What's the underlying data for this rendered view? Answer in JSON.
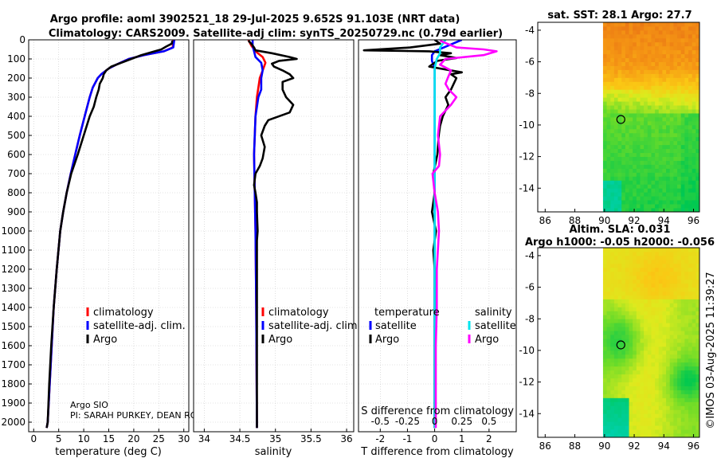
{
  "title_line1": "Argo profile: aoml 3902521_18 29-Jul-2025 9.652S 91.103E (NRT data)",
  "title_line2": "Climatology: CARS2009. Satellite-adj clim: synTS_20250729.nc (0.79d earlier)",
  "timestamp": "©IMOS 03-Aug-2025 11:39:27",
  "credit": {
    "line1": "Argo SIO",
    "line2": "PI: SARAH PURKEY, DEAN RO"
  },
  "colors": {
    "climatology": "#ff0000",
    "satellite_adj": "#0000ff",
    "argo": "#000000",
    "salinity_satellite": "#00e5ee",
    "salinity_argo": "#ff00ff"
  },
  "chart_data": [
    {
      "type": "line",
      "xlabel": "temperature (deg C)",
      "ylim": [
        2050,
        0
      ],
      "xlim": [
        -1,
        31
      ],
      "xticks": [
        "0",
        "5",
        "10",
        "15",
        "20",
        "25",
        "30"
      ],
      "xtick_values": [
        0,
        5,
        10,
        15,
        20,
        25,
        30
      ],
      "yticks": [
        "0",
        "100",
        "200",
        "300",
        "400",
        "500",
        "600",
        "700",
        "800",
        "900",
        "1000",
        "1100",
        "1200",
        "1300",
        "1400",
        "1500",
        "1600",
        "1700",
        "1800",
        "1900",
        "2000"
      ],
      "ytick_values": [
        0,
        100,
        200,
        300,
        400,
        500,
        600,
        700,
        800,
        900,
        1000,
        1100,
        1200,
        1300,
        1400,
        1500,
        1600,
        1700,
        1800,
        1900,
        2000
      ],
      "grid": true,
      "legend": {
        "placement": "center",
        "entries": [
          "climatology",
          "satellite-adj. clim.",
          "Argo"
        ]
      },
      "series": [
        {
          "name": "climatology",
          "depth": [
            0,
            40,
            60,
            80,
            100,
            130,
            150,
            180,
            200,
            250,
            300,
            400,
            500,
            600,
            700,
            800,
            900,
            1000,
            1200,
            1400,
            1600,
            1800,
            2000,
            2030
          ],
          "values": [
            27.9,
            27.8,
            26,
            22,
            19,
            16.5,
            15,
            13.5,
            12.8,
            11.8,
            11.2,
            10.2,
            9.2,
            8.3,
            7.4,
            6.6,
            5.9,
            5.3,
            4.6,
            4.0,
            3.6,
            3.2,
            2.8,
            2.6
          ]
        },
        {
          "name": "satellite-adj. clim.",
          "depth": [
            0,
            40,
            60,
            80,
            100,
            130,
            150,
            180,
            200,
            250,
            300,
            400,
            500,
            600,
            700,
            800,
            900,
            1000,
            1200,
            1400,
            1600,
            1800,
            2000,
            2030
          ],
          "values": [
            28.1,
            27.9,
            26,
            22,
            19,
            16.5,
            15,
            13.5,
            12.8,
            11.8,
            11.2,
            10.2,
            9.2,
            8.3,
            7.4,
            6.6,
            5.9,
            5.3,
            4.6,
            4.0,
            3.6,
            3.2,
            2.8,
            2.6
          ]
        },
        {
          "name": "Argo",
          "depth": [
            5,
            20,
            35,
            50,
            65,
            80,
            100,
            120,
            140,
            160,
            180,
            200,
            230,
            260,
            300,
            350,
            400,
            500,
            600,
            700,
            800,
            900,
            1000,
            1200,
            1400,
            1600,
            1800,
            2000,
            2030
          ],
          "values": [
            27.7,
            27.6,
            26.5,
            25.5,
            23.5,
            21.5,
            19.5,
            17.5,
            15.5,
            14.5,
            14,
            13.8,
            13.2,
            13.0,
            12.5,
            12,
            11.2,
            10,
            8.8,
            7.5,
            6.6,
            5.9,
            5.3,
            4.6,
            4.0,
            3.5,
            3.1,
            2.8,
            2.6
          ]
        }
      ]
    },
    {
      "type": "line",
      "xlabel": "salinity",
      "ylim": [
        2050,
        0
      ],
      "xlim": [
        33.85,
        36.1
      ],
      "xticks": [
        "34",
        "34.5",
        "35",
        "35.5",
        "36"
      ],
      "xtick_values": [
        34,
        34.5,
        35,
        35.5,
        36
      ],
      "grid": true,
      "legend": {
        "placement": "center",
        "entries": [
          "climatology",
          "satellite-adj. clim.",
          "Argo"
        ]
      },
      "series": [
        {
          "name": "climatology",
          "depth": [
            0,
            30,
            60,
            90,
            120,
            160,
            200,
            300,
            400,
            600,
            800,
            1000,
            1400,
            2030
          ],
          "values": [
            34.62,
            34.66,
            34.72,
            34.82,
            34.86,
            34.82,
            34.78,
            34.74,
            34.72,
            34.7,
            34.71,
            34.72,
            34.73,
            34.74
          ]
        },
        {
          "name": "satellite-adj. clim.",
          "depth": [
            0,
            30,
            60,
            90,
            120,
            160,
            200,
            260,
            300,
            400,
            600,
            800,
            1000,
            1400,
            2030
          ],
          "values": [
            34.68,
            34.68,
            34.7,
            34.72,
            34.8,
            34.82,
            34.8,
            34.8,
            34.76,
            34.72,
            34.7,
            34.71,
            34.72,
            34.73,
            34.74
          ]
        },
        {
          "name": "Argo",
          "depth": [
            5,
            20,
            40,
            55,
            70,
            90,
            100,
            110,
            125,
            140,
            160,
            180,
            200,
            220,
            260,
            300,
            340,
            380,
            420,
            450,
            500,
            560,
            620,
            660,
            700,
            760,
            800,
            850,
            900,
            1000,
            1050,
            1200,
            1400,
            1600,
            2030
          ],
          "values": [
            34.62,
            34.66,
            34.7,
            34.72,
            34.95,
            35.2,
            35.3,
            35.05,
            34.95,
            34.98,
            35.1,
            35.2,
            35.25,
            35.1,
            35.1,
            35.15,
            35.25,
            35.2,
            34.9,
            34.85,
            34.8,
            34.85,
            34.82,
            34.78,
            34.72,
            34.7,
            34.72,
            34.74,
            34.74,
            34.75,
            34.74,
            34.74,
            34.74,
            34.74,
            34.74
          ]
        }
      ]
    },
    {
      "type": "line",
      "xlabel": "T difference from climatology",
      "ylim": [
        2050,
        0
      ],
      "xlim": [
        -2.8,
        3.0
      ],
      "xticks": [
        "-2",
        "-1",
        "0",
        "1",
        "2"
      ],
      "xtick_values": [
        -2,
        -1,
        0,
        1,
        2
      ],
      "secondary_axis": {
        "label": "S difference from climatology",
        "ticks": [
          "-0.5",
          "-0.25",
          "0",
          "0.25",
          "0.5"
        ],
        "tick_values": [
          -0.5,
          -0.25,
          0,
          0.25,
          0.5
        ],
        "xlim": [
          -0.7,
          0.75
        ]
      },
      "grid": true,
      "legend": {
        "placement": "center",
        "groups": [
          {
            "heading": "temperature",
            "entries": [
              "satellite",
              "Argo"
            ]
          },
          {
            "heading": "salinity",
            "entries": [
              "satellite",
              "Argo"
            ]
          }
        ]
      },
      "series": [
        {
          "name": "satellite",
          "quantity": "temperature",
          "depth": [
            0,
            30,
            60,
            80,
            110,
            150,
            200,
            300,
            400,
            600,
            800,
            1200,
            1600,
            2030
          ],
          "values": [
            1.0,
            0.5,
            0,
            -0.1,
            -0.1,
            0,
            0,
            0,
            0,
            0,
            0,
            0,
            0,
            0
          ]
        },
        {
          "name": "Argo",
          "quantity": "temperature",
          "depth": [
            0,
            20,
            40,
            55,
            60,
            70,
            80,
            95,
            110,
            140,
            170,
            180,
            200,
            230,
            260,
            300,
            340,
            400,
            450,
            500,
            600,
            700,
            800,
            900,
            1000,
            1100,
            1200,
            1400,
            1600,
            2030
          ],
          "values": [
            0,
            0.2,
            -0.9,
            -2.6,
            -0.2,
            0.6,
            0.2,
            0.8,
            0.1,
            -0.2,
            1.0,
            0.6,
            0.8,
            0.7,
            0.6,
            0.4,
            0.5,
            0.3,
            0.2,
            0.15,
            0.1,
            -0.05,
            0,
            -0.1,
            0.05,
            -0.05,
            0,
            0,
            0,
            0
          ]
        },
        {
          "name": "satellite",
          "quantity": "salinity",
          "depth": [
            0,
            40,
            70,
            100,
            150,
            200,
            300,
            500,
            800,
            1200,
            1600,
            2030
          ],
          "values": [
            0.1,
            0.05,
            0.05,
            0.02,
            0,
            0,
            0,
            0,
            0,
            0,
            0,
            0
          ]
        },
        {
          "name": "Argo",
          "quantity": "salinity",
          "depth": [
            5,
            40,
            50,
            60,
            80,
            100,
            130,
            160,
            200,
            230,
            260,
            300,
            340,
            400,
            500,
            600,
            660,
            700,
            800,
            900,
            1000,
            1200,
            1400,
            1600,
            2030
          ],
          "values": [
            0.05,
            0.2,
            0.45,
            0.57,
            0.45,
            0.1,
            0.05,
            0.15,
            0.12,
            0.1,
            0.13,
            0.2,
            0.15,
            0.05,
            0.03,
            0.05,
            0.04,
            -0.02,
            0.0,
            0.03,
            0.04,
            0.02,
            0.02,
            0.01,
            0.01
          ]
        }
      ]
    },
    {
      "type": "heatmap",
      "title": "sat. SST: 28.1 Argo: 27.7",
      "xlim": [
        85.5,
        96.4
      ],
      "ylim": [
        -15.5,
        -3.5
      ],
      "xticks": [
        "86",
        "88",
        "90",
        "92",
        "94",
        "96"
      ],
      "xtick_values": [
        86,
        88,
        90,
        92,
        94,
        96
      ],
      "yticks": [
        "-4",
        "-6",
        "-8",
        "-10",
        "-12",
        "-14"
      ],
      "ytick_values": [
        -4,
        -6,
        -8,
        -10,
        -12,
        -14
      ],
      "data_extent": {
        "lon": [
          89.9,
          96.4
        ],
        "lat": [
          -15.5,
          -3.5
        ]
      },
      "profile_marker": {
        "lon": 91.1,
        "lat": -9.65
      }
    },
    {
      "type": "heatmap",
      "title": "Altim. SLA: 0.031",
      "title2": "Argo h1000: -0.05 h2000: -0.056",
      "xlim": [
        85.5,
        96.4
      ],
      "ylim": [
        -15.5,
        -3.5
      ],
      "xticks": [
        "86",
        "88",
        "90",
        "92",
        "94",
        "96"
      ],
      "xtick_values": [
        86,
        88,
        90,
        92,
        94,
        96
      ],
      "yticks": [
        "-4",
        "-6",
        "-8",
        "-10",
        "-12",
        "-14"
      ],
      "ytick_values": [
        -4,
        -6,
        -8,
        -10,
        -12,
        -14
      ],
      "data_extent": {
        "lon": [
          89.9,
          96.4
        ],
        "lat": [
          -15.5,
          -3.5
        ]
      },
      "profile_marker": {
        "lon": 91.1,
        "lat": -9.65
      }
    }
  ]
}
